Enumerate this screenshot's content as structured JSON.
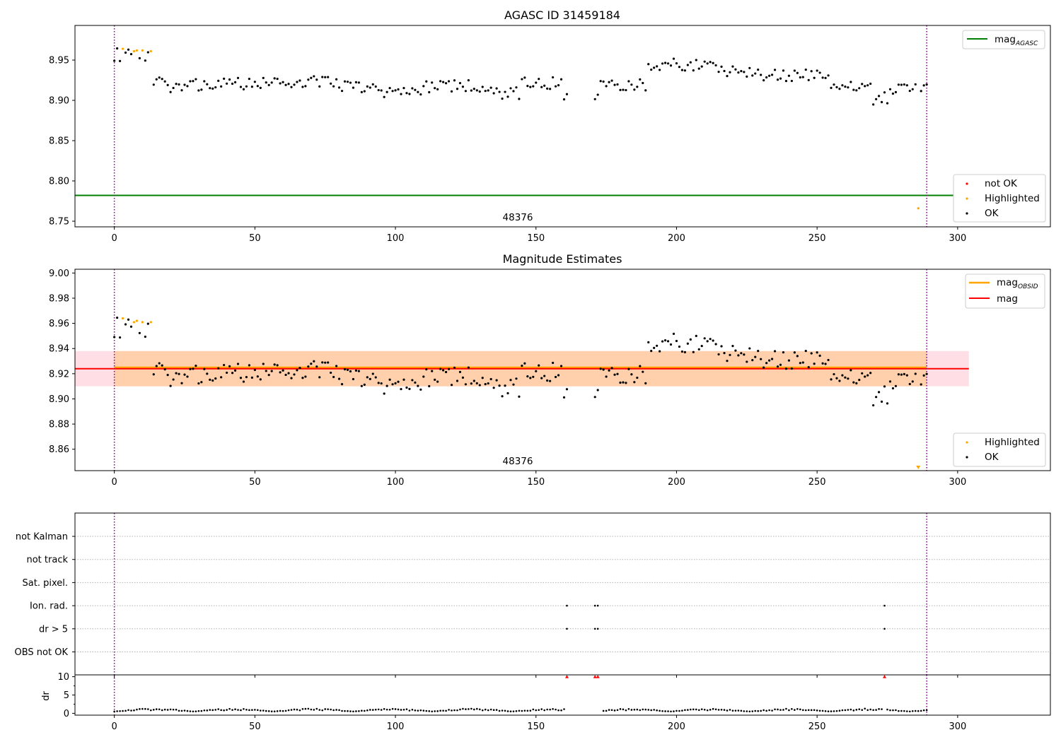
{
  "chart_data": [
    {
      "type": "scatter",
      "title": "AGASC ID 31459184",
      "xlim": [
        -14,
        333
      ],
      "ylim": [
        8.743,
        8.993
      ],
      "xticks": [
        0,
        50,
        100,
        150,
        200,
        250,
        300
      ],
      "yticks": [
        8.75,
        8.8,
        8.85,
        8.9,
        8.95
      ],
      "ytick_labels": [
        "8.75",
        "8.80",
        "8.85",
        "8.90",
        "8.95"
      ],
      "obsid_boundaries": [
        0,
        289
      ],
      "obsid_label": "48376",
      "obsid_label_x": 144,
      "lines": [
        {
          "name": "mag_AGASC",
          "label_main": "mag",
          "label_sub": "AGASC",
          "y": 8.782,
          "x": [
            -14,
            304
          ],
          "color": "#008000"
        }
      ],
      "series": [
        {
          "name": "not OK",
          "color": "#ff0000",
          "x": [],
          "y": []
        },
        {
          "name": "Highlighted",
          "color": "#ffa500",
          "x": [
            3,
            7,
            8,
            10,
            13,
            286
          ],
          "y": [
            8.964,
            8.961,
            8.962,
            8.962,
            8.961,
            8.766
          ]
        },
        {
          "name": "OK",
          "color": "#000000",
          "generated": true
        }
      ],
      "legends": {
        "lines": "top-right",
        "points": "bottom-right"
      }
    },
    {
      "type": "scatter",
      "title": "Magnitude Estimates",
      "xlim": [
        -14,
        333
      ],
      "ylim": [
        8.843,
        9.003
      ],
      "xticks": [
        0,
        50,
        100,
        150,
        200,
        250,
        300
      ],
      "yticks": [
        8.86,
        8.88,
        8.9,
        8.92,
        8.94,
        8.96,
        8.98,
        9.0
      ],
      "ytick_labels": [
        "8.86",
        "8.88",
        "8.90",
        "8.92",
        "8.94",
        "8.96",
        "8.98",
        "9.00"
      ],
      "obsid_boundaries": [
        0,
        289
      ],
      "obsid_label": "48376",
      "obsid_label_x": 144,
      "bands": [
        {
          "name": "mag range",
          "y": [
            8.91,
            8.938
          ],
          "x": [
            -14,
            304
          ],
          "color": "#ffc0cb"
        },
        {
          "name": "mag_OBSID range",
          "y": [
            8.91,
            8.938
          ],
          "x": [
            0,
            289
          ],
          "color": "#ffa500"
        }
      ],
      "lines": [
        {
          "name": "mag_OBSID",
          "label_main": "mag",
          "label_sub": "OBSID",
          "y": 8.925,
          "x": [
            0,
            289
          ],
          "color": "#ffa500"
        },
        {
          "name": "mag",
          "label_main": "mag",
          "label_sub": "",
          "y": 8.924,
          "x": [
            -14,
            304
          ],
          "color": "#ff0000"
        }
      ],
      "series": [
        {
          "name": "Highlighted",
          "color": "#ffa500",
          "x": [
            3,
            7,
            8,
            10,
            13
          ],
          "y": [
            8.964,
            8.961,
            8.962,
            8.961,
            8.961
          ]
        },
        {
          "name": "OK",
          "color": "#000000",
          "generated": true
        }
      ],
      "offscale_marker": {
        "x": 286,
        "direction": "down",
        "color": "#ffa500"
      },
      "legends": {
        "lines": "top-right",
        "points": "bottom-right"
      }
    },
    {
      "type": "scatter",
      "title": "",
      "xlim": [
        -14,
        333
      ],
      "categories": [
        "not Kalman",
        "not track",
        "Sat. pixel.",
        "Ion. rad.",
        "dr > 5",
        "OBS not OK"
      ],
      "obsid_boundaries": [
        0,
        289
      ],
      "flags": [
        {
          "category": "Ion. rad.",
          "x": [
            161,
            171,
            172,
            274
          ]
        },
        {
          "category": "dr > 5",
          "x": [
            161,
            171,
            172,
            274
          ]
        }
      ]
    },
    {
      "type": "scatter",
      "title": "",
      "ylabel": "dr",
      "xlim": [
        -14,
        333
      ],
      "ylim": [
        -0.5,
        10.5
      ],
      "xticks": [
        0,
        50,
        100,
        150,
        200,
        250,
        300
      ],
      "yticks": [
        0,
        5,
        10
      ],
      "ytick_labels": [
        "0",
        "5",
        "10"
      ],
      "obsid_boundaries": [
        0,
        289
      ],
      "clipped_high": {
        "x": [
          161,
          171,
          172,
          274
        ],
        "color": "#ff0000"
      },
      "gaps": [
        [
          161,
          171
        ],
        [
          172,
          174
        ]
      ],
      "series": [
        {
          "name": "dr",
          "color": "#000000",
          "generated": true
        }
      ]
    }
  ],
  "colors": {
    "obsid_line": "#800080",
    "grid": "#b0b0b0"
  },
  "legend_points": [
    "not OK",
    "Highlighted",
    "OK"
  ],
  "legend_points_2": [
    "Highlighted",
    "OK"
  ]
}
